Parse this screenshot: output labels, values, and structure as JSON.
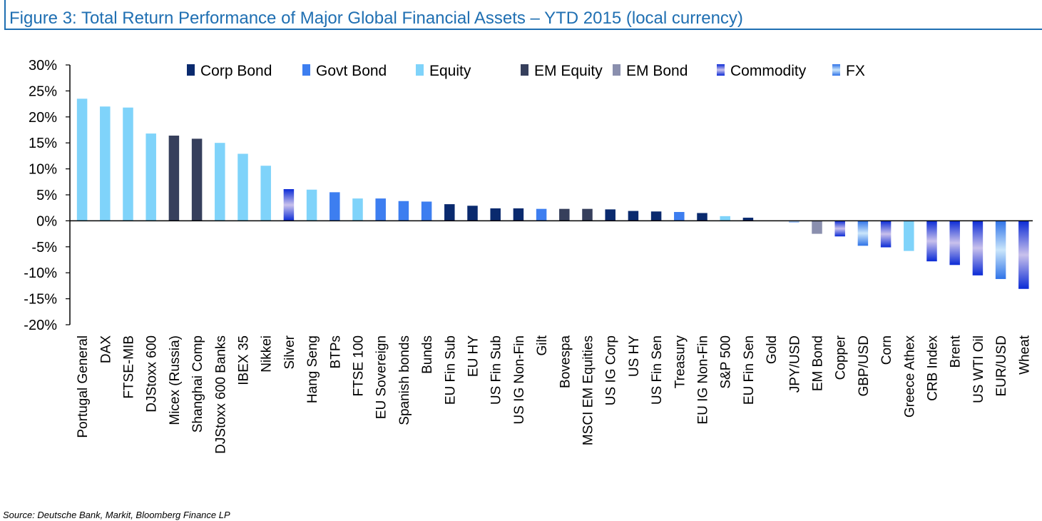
{
  "title": "Figure 3: Total Return Performance of Major Global Financial Assets – YTD 2015 (local currency)",
  "source": "Source: Deutsche Bank, Markit, Bloomberg Finance LP",
  "colors": {
    "Corp Bond": "#0a2a6e",
    "Govt Bond": "#3d7ef0",
    "Equity": "#7fd3fa",
    "EM Equity": "#363f5c",
    "EM Bond": "#8a8fae",
    "Commodity": [
      "#0b2bd6",
      "#c9c1ec"
    ],
    "FX": [
      "#2f73e8",
      "#cbe6fb"
    ],
    "axis": "#000000",
    "title": "#1f6fb2"
  },
  "chart_data": {
    "type": "bar",
    "title": "Figure 3: Total Return Performance of Major Global Financial Assets – YTD 2015 (local currency)",
    "xlabel": "",
    "ylabel": "",
    "ylim": [
      -20,
      30
    ],
    "yticks": [
      "30%",
      "25%",
      "20%",
      "15%",
      "10%",
      "5%",
      "0%",
      "-5%",
      "-10%",
      "-15%",
      "-20%"
    ],
    "ytick_values": [
      30,
      25,
      20,
      15,
      10,
      5,
      0,
      -5,
      -10,
      -15,
      -20
    ],
    "grid": false,
    "legend_position": "top",
    "legend": [
      "Corp Bond",
      "Govt Bond",
      "Equity",
      "EM Equity",
      "EM Bond",
      "Commodity",
      "FX"
    ],
    "categories": [
      "Portugal General",
      "DAX",
      "FTSE-MIB",
      "DJStoxx 600",
      "Micex (Russia)",
      "Shanghai Comp",
      "DJStoxx 600 Banks",
      "IBEX 35",
      "Nikkei",
      "Silver",
      "Hang Seng",
      "BTPs",
      "FTSE 100",
      "EU Sovereign",
      "Spanish bonds",
      "Bunds",
      "EU Fin Sub",
      "EU HY",
      "US Fin Sub",
      "US IG Non-Fin",
      "Gilt",
      "Bovespa",
      "MSCI EM Equities",
      "US IG Corp",
      "US HY",
      "US Fin Sen",
      "Treasury",
      "EU IG Non-Fin",
      "S&P 500",
      "EU Fin Sen",
      "Gold",
      "JPY/USD",
      "EM Bond",
      "Copper",
      "GBP/USD",
      "Corn",
      "Greece Athex",
      "CRB Index",
      "Brent",
      "US WTI Oil",
      "EUR/USD",
      "Wheat"
    ],
    "values": [
      23.5,
      22.0,
      21.8,
      16.8,
      16.4,
      15.8,
      15.0,
      12.9,
      10.6,
      6.1,
      6.0,
      5.5,
      4.3,
      4.3,
      3.8,
      3.7,
      3.2,
      2.9,
      2.4,
      2.4,
      2.3,
      2.3,
      2.3,
      2.2,
      1.9,
      1.8,
      1.7,
      1.5,
      0.9,
      0.6,
      0.0,
      -0.3,
      -2.5,
      -3.0,
      -4.8,
      -5.1,
      -5.8,
      -7.8,
      -8.5,
      -10.5,
      -11.2,
      -13.1
    ],
    "asset_class": [
      "Equity",
      "Equity",
      "Equity",
      "Equity",
      "EM Equity",
      "EM Equity",
      "Equity",
      "Equity",
      "Equity",
      "Commodity",
      "Equity",
      "Govt Bond",
      "Equity",
      "Govt Bond",
      "Govt Bond",
      "Govt Bond",
      "Corp Bond",
      "Corp Bond",
      "Corp Bond",
      "Corp Bond",
      "Govt Bond",
      "EM Equity",
      "EM Equity",
      "Corp Bond",
      "Corp Bond",
      "Corp Bond",
      "Govt Bond",
      "Corp Bond",
      "Equity",
      "Corp Bond",
      "Commodity",
      "FX",
      "EM Bond",
      "Commodity",
      "FX",
      "Commodity",
      "Equity",
      "Commodity",
      "Commodity",
      "Commodity",
      "FX",
      "Commodity"
    ]
  }
}
